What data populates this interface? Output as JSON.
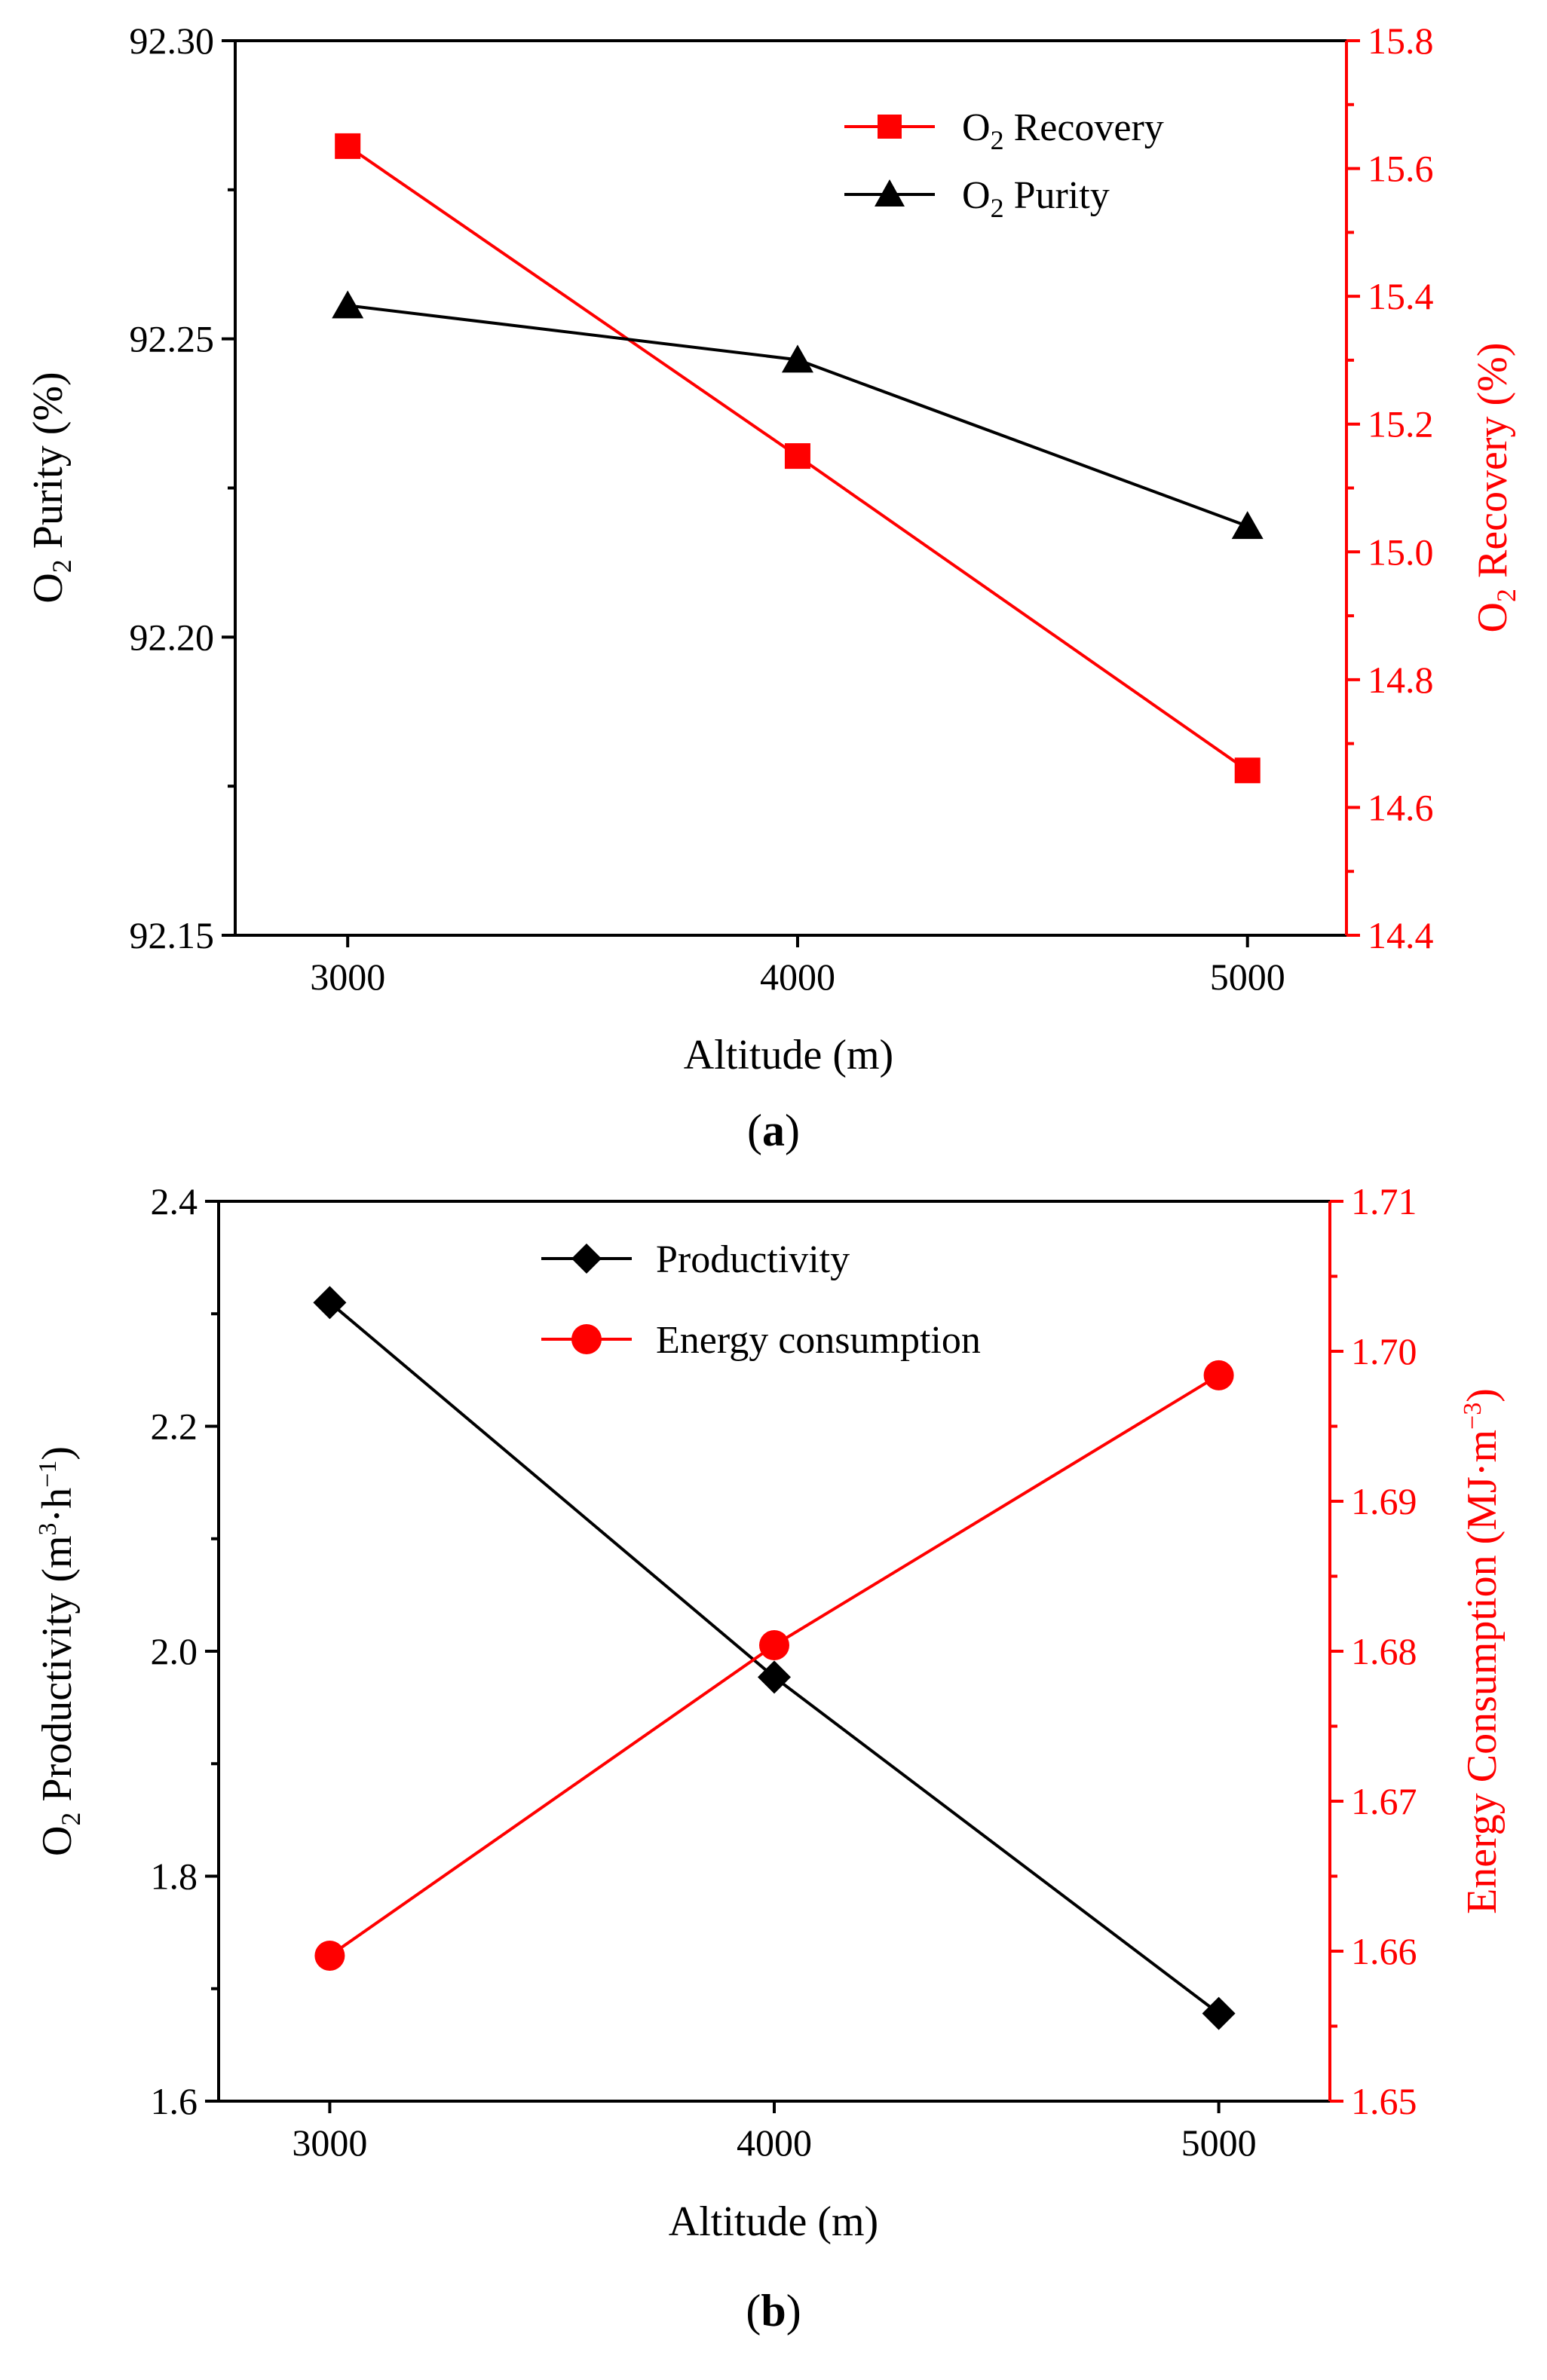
{
  "chart_data": [
    {
      "panel": "(a)",
      "panel_letter": "a",
      "type": "line",
      "x": [
        3000,
        4000,
        5000
      ],
      "xlabel": "Altitude (m)",
      "xticks": [
        "3000",
        "4000",
        "5000"
      ],
      "xlim": [
        2750,
        5220
      ],
      "ylabel_left": {
        "pre": "O",
        "sub": "2",
        "post": " Purity (%)"
      },
      "ylabel_right": {
        "pre": "O",
        "sub": "2",
        "post": " Recovery (%)"
      },
      "ylim_left": [
        92.15,
        92.3
      ],
      "ylim_right": [
        14.4,
        15.8
      ],
      "yticks_left": [
        "92.15",
        "92.20",
        "92.25",
        "92.30"
      ],
      "yticks_right": [
        "14.4",
        "14.6",
        "14.8",
        "15.0",
        "15.2",
        "15.4",
        "15.6",
        "15.8"
      ],
      "series": [
        {
          "name": "O2 Recovery",
          "legend": {
            "pre": "O",
            "sub": "2",
            "post": " Recovery"
          },
          "axis": "right",
          "marker": "square",
          "color": "#ff0000",
          "values": [
            15.635,
            15.15,
            14.658
          ]
        },
        {
          "name": "O2 Purity",
          "legend": {
            "pre": "O",
            "sub": "2",
            "post": " Purity"
          },
          "axis": "left",
          "marker": "triangle",
          "color": "#000000",
          "values": [
            92.2556,
            92.2465,
            92.2186
          ]
        }
      ],
      "legend_position": "top-right"
    },
    {
      "panel": "(b)",
      "panel_letter": "b",
      "type": "line",
      "x": [
        3000,
        4000,
        5000
      ],
      "xlabel": "Altitude (m)",
      "xticks": [
        "3000",
        "4000",
        "5000"
      ],
      "xlim": [
        2750,
        5250
      ],
      "ylabel_left": {
        "pre": "O",
        "sub": "2",
        "mid": " Productivity (m",
        "sup": "3",
        "mid2": "·h",
        "sup2": "−1",
        "post": ")"
      },
      "ylabel_right": {
        "pre": "Energy Consumption (MJ·m",
        "sup": "−3",
        "post": ")"
      },
      "ylim_left": [
        1.6,
        2.4
      ],
      "ylim_right": [
        1.65,
        1.71
      ],
      "yticks_left": [
        "1.6",
        "1.8",
        "2.0",
        "2.2",
        "2.4"
      ],
      "yticks_right": [
        "1.65",
        "1.66",
        "1.67",
        "1.68",
        "1.69",
        "1.70",
        "1.71"
      ],
      "series": [
        {
          "name": "Productivity",
          "axis": "left",
          "marker": "diamond",
          "color": "#000000",
          "values": [
            2.31,
            1.977,
            1.678
          ]
        },
        {
          "name": "Energy consumption",
          "axis": "right",
          "marker": "circle",
          "color": "#ff0000",
          "values": [
            1.6597,
            1.6804,
            1.6984
          ]
        }
      ],
      "legend_position": "top-center"
    }
  ]
}
